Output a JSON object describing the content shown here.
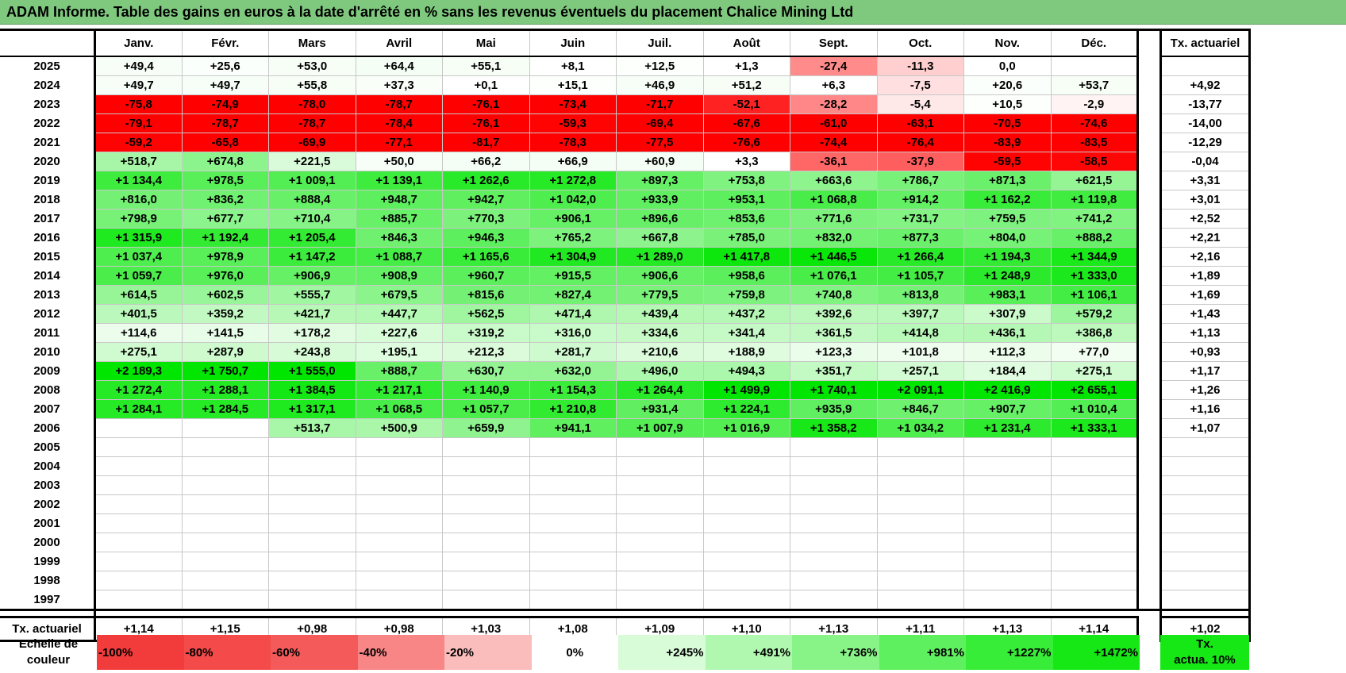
{
  "title": "ADAM Informe. Table des gains en euros à la date d'arrêté en % sans les revenus éventuels du placement Chalice Mining Ltd",
  "months": [
    "Janv.",
    "Févr.",
    "Mars",
    "Avril",
    "Mai",
    "Juin",
    "Juil.",
    "Août",
    "Sept.",
    "Oct.",
    "Nov.",
    "Déc."
  ],
  "actuarial_header": "Tx. actuariel",
  "rows": [
    {
      "year": "2025",
      "values": [
        "+49,4",
        "+25,6",
        "+53,0",
        "+64,4",
        "+55,1",
        "+8,1",
        "+12,5",
        "+1,3",
        "-27,4",
        "-11,3",
        "0,0",
        ""
      ],
      "rate": ""
    },
    {
      "year": "2024",
      "values": [
        "+49,7",
        "+49,7",
        "+55,8",
        "+37,3",
        "+0,1",
        "+15,1",
        "+46,9",
        "+51,2",
        "+6,3",
        "-7,5",
        "+20,6",
        "+53,7"
      ],
      "rate": "+4,92"
    },
    {
      "year": "2023",
      "values": [
        "-75,8",
        "-74,9",
        "-78,0",
        "-78,7",
        "-76,1",
        "-73,4",
        "-71,7",
        "-52,1",
        "-28,2",
        "-5,4",
        "+10,5",
        "-2,9"
      ],
      "rate": "-13,77"
    },
    {
      "year": "2022",
      "values": [
        "-79,1",
        "-78,7",
        "-78,7",
        "-78,4",
        "-76,1",
        "-59,3",
        "-69,4",
        "-67,6",
        "-61,0",
        "-63,1",
        "-70,5",
        "-74,6"
      ],
      "rate": "-14,00"
    },
    {
      "year": "2021",
      "values": [
        "-59,2",
        "-65,8",
        "-69,9",
        "-77,1",
        "-81,7",
        "-78,3",
        "-77,5",
        "-76,6",
        "-74,4",
        "-76,4",
        "-83,9",
        "-83,5"
      ],
      "rate": "-12,29"
    },
    {
      "year": "2020",
      "values": [
        "+518,7",
        "+674,8",
        "+221,5",
        "+50,0",
        "+66,2",
        "+66,9",
        "+60,9",
        "+3,3",
        "-36,1",
        "-37,9",
        "-59,5",
        "-58,5"
      ],
      "rate": "-0,04"
    },
    {
      "year": "2019",
      "values": [
        "+1 134,4",
        "+978,5",
        "+1 009,1",
        "+1 139,1",
        "+1 262,6",
        "+1 272,8",
        "+897,3",
        "+753,8",
        "+663,6",
        "+786,7",
        "+871,3",
        "+621,5"
      ],
      "rate": "+3,31"
    },
    {
      "year": "2018",
      "values": [
        "+816,0",
        "+836,2",
        "+888,4",
        "+948,7",
        "+942,7",
        "+1 042,0",
        "+933,9",
        "+953,1",
        "+1 068,8",
        "+914,2",
        "+1 162,2",
        "+1 119,8"
      ],
      "rate": "+3,01"
    },
    {
      "year": "2017",
      "values": [
        "+798,9",
        "+677,7",
        "+710,4",
        "+885,7",
        "+770,3",
        "+906,1",
        "+896,6",
        "+853,6",
        "+771,6",
        "+731,7",
        "+759,5",
        "+741,2"
      ],
      "rate": "+2,52"
    },
    {
      "year": "2016",
      "values": [
        "+1 315,9",
        "+1 192,4",
        "+1 205,4",
        "+846,3",
        "+946,3",
        "+765,2",
        "+667,8",
        "+785,0",
        "+832,0",
        "+877,3",
        "+804,0",
        "+888,2"
      ],
      "rate": "+2,21"
    },
    {
      "year": "2015",
      "values": [
        "+1 037,4",
        "+978,9",
        "+1 147,2",
        "+1 088,7",
        "+1 165,6",
        "+1 304,9",
        "+1 289,0",
        "+1 417,8",
        "+1 446,5",
        "+1 266,4",
        "+1 194,3",
        "+1 344,9"
      ],
      "rate": "+2,16"
    },
    {
      "year": "2014",
      "values": [
        "+1 059,7",
        "+976,0",
        "+906,9",
        "+908,9",
        "+960,7",
        "+915,5",
        "+906,6",
        "+958,6",
        "+1 076,1",
        "+1 105,7",
        "+1 248,9",
        "+1 333,0"
      ],
      "rate": "+1,89"
    },
    {
      "year": "2013",
      "values": [
        "+614,5",
        "+602,5",
        "+555,7",
        "+679,5",
        "+815,6",
        "+827,4",
        "+779,5",
        "+759,8",
        "+740,8",
        "+813,8",
        "+983,1",
        "+1 106,1"
      ],
      "rate": "+1,69"
    },
    {
      "year": "2012",
      "values": [
        "+401,5",
        "+359,2",
        "+421,7",
        "+447,7",
        "+562,5",
        "+471,4",
        "+439,4",
        "+437,2",
        "+392,6",
        "+397,7",
        "+307,9",
        "+579,2"
      ],
      "rate": "+1,43"
    },
    {
      "year": "2011",
      "values": [
        "+114,6",
        "+141,5",
        "+178,2",
        "+227,6",
        "+319,2",
        "+316,0",
        "+334,6",
        "+341,4",
        "+361,5",
        "+414,8",
        "+436,1",
        "+386,8"
      ],
      "rate": "+1,13"
    },
    {
      "year": "2010",
      "values": [
        "+275,1",
        "+287,9",
        "+243,8",
        "+195,1",
        "+212,3",
        "+281,7",
        "+210,6",
        "+188,9",
        "+123,3",
        "+101,8",
        "+112,3",
        "+77,0"
      ],
      "rate": "+0,93"
    },
    {
      "year": "2009",
      "values": [
        "+2 189,3",
        "+1 750,7",
        "+1 555,0",
        "+888,7",
        "+630,7",
        "+632,0",
        "+496,0",
        "+494,3",
        "+351,7",
        "+257,1",
        "+184,4",
        "+275,1"
      ],
      "rate": "+1,17"
    },
    {
      "year": "2008",
      "values": [
        "+1 272,4",
        "+1 288,1",
        "+1 384,5",
        "+1 217,1",
        "+1 140,9",
        "+1 154,3",
        "+1 264,4",
        "+1 499,9",
        "+1 740,1",
        "+2 091,1",
        "+2 416,9",
        "+2 655,1"
      ],
      "rate": "+1,26"
    },
    {
      "year": "2007",
      "values": [
        "+1 284,1",
        "+1 284,5",
        "+1 317,1",
        "+1 068,5",
        "+1 057,7",
        "+1 210,8",
        "+931,4",
        "+1 224,1",
        "+935,9",
        "+846,7",
        "+907,7",
        "+1 010,4"
      ],
      "rate": "+1,16"
    },
    {
      "year": "2006",
      "values": [
        "",
        "",
        "+513,7",
        "+500,9",
        "+659,9",
        "+941,1",
        "+1 007,9",
        "+1 016,9",
        "+1 358,2",
        "+1 034,2",
        "+1 231,4",
        "+1 333,1"
      ],
      "rate": "+1,07"
    },
    {
      "year": "2005",
      "values": [
        "",
        "",
        "",
        "",
        "",
        "",
        "",
        "",
        "",
        "",
        "",
        ""
      ],
      "rate": ""
    },
    {
      "year": "2004",
      "values": [
        "",
        "",
        "",
        "",
        "",
        "",
        "",
        "",
        "",
        "",
        "",
        ""
      ],
      "rate": ""
    },
    {
      "year": "2003",
      "values": [
        "",
        "",
        "",
        "",
        "",
        "",
        "",
        "",
        "",
        "",
        "",
        ""
      ],
      "rate": ""
    },
    {
      "year": "2002",
      "values": [
        "",
        "",
        "",
        "",
        "",
        "",
        "",
        "",
        "",
        "",
        "",
        ""
      ],
      "rate": ""
    },
    {
      "year": "2001",
      "values": [
        "",
        "",
        "",
        "",
        "",
        "",
        "",
        "",
        "",
        "",
        "",
        ""
      ],
      "rate": ""
    },
    {
      "year": "2000",
      "values": [
        "",
        "",
        "",
        "",
        "",
        "",
        "",
        "",
        "",
        "",
        "",
        ""
      ],
      "rate": ""
    },
    {
      "year": "1999",
      "values": [
        "",
        "",
        "",
        "",
        "",
        "",
        "",
        "",
        "",
        "",
        "",
        ""
      ],
      "rate": ""
    },
    {
      "year": "1998",
      "values": [
        "",
        "",
        "",
        "",
        "",
        "",
        "",
        "",
        "",
        "",
        "",
        ""
      ],
      "rate": ""
    },
    {
      "year": "1997",
      "values": [
        "",
        "",
        "",
        "",
        "",
        "",
        "",
        "",
        "",
        "",
        "",
        ""
      ],
      "rate": ""
    }
  ],
  "totals": {
    "label": "Tx. actuariel",
    "values": [
      "+1,14",
      "+1,15",
      "+0,98",
      "+0,98",
      "+1,03",
      "+1,08",
      "+1,09",
      "+1,10",
      "+1,13",
      "+1,11",
      "+1,13",
      "+1,14"
    ],
    "rate": "+1,02"
  },
  "legend": {
    "label_line1": "Echelle de",
    "label_line2": "couleur",
    "steps": [
      {
        "text": "-100%",
        "color": "#f23b3b",
        "align": "left"
      },
      {
        "text": "-80%",
        "color": "#f44a4a",
        "align": "left"
      },
      {
        "text": "-60%",
        "color": "#f55a5a",
        "align": "left"
      },
      {
        "text": "-40%",
        "color": "#f88686",
        "align": "left"
      },
      {
        "text": "-20%",
        "color": "#fbbcbc",
        "align": "left"
      },
      {
        "text": "0%",
        "color": "#ffffff",
        "align": "center"
      },
      {
        "text": "+245%",
        "color": "#d8fbd8",
        "align": "right"
      },
      {
        "text": "+491%",
        "color": "#b0f7b0",
        "align": "right"
      },
      {
        "text": "+736%",
        "color": "#88f488",
        "align": "right"
      },
      {
        "text": "+981%",
        "color": "#5ff05f",
        "align": "right"
      },
      {
        "text": "+1227%",
        "color": "#38ed38",
        "align": "right"
      },
      {
        "text": "+1472%",
        "color": "#16e816",
        "align": "right"
      }
    ],
    "act_line1": "Tx.",
    "act_line2": "actua. 10%",
    "act_color": "#16e816"
  },
  "colors": {
    "title_bg": "#7fc97f",
    "negative_full": "#ff0000",
    "positive_full": "#00e600"
  }
}
